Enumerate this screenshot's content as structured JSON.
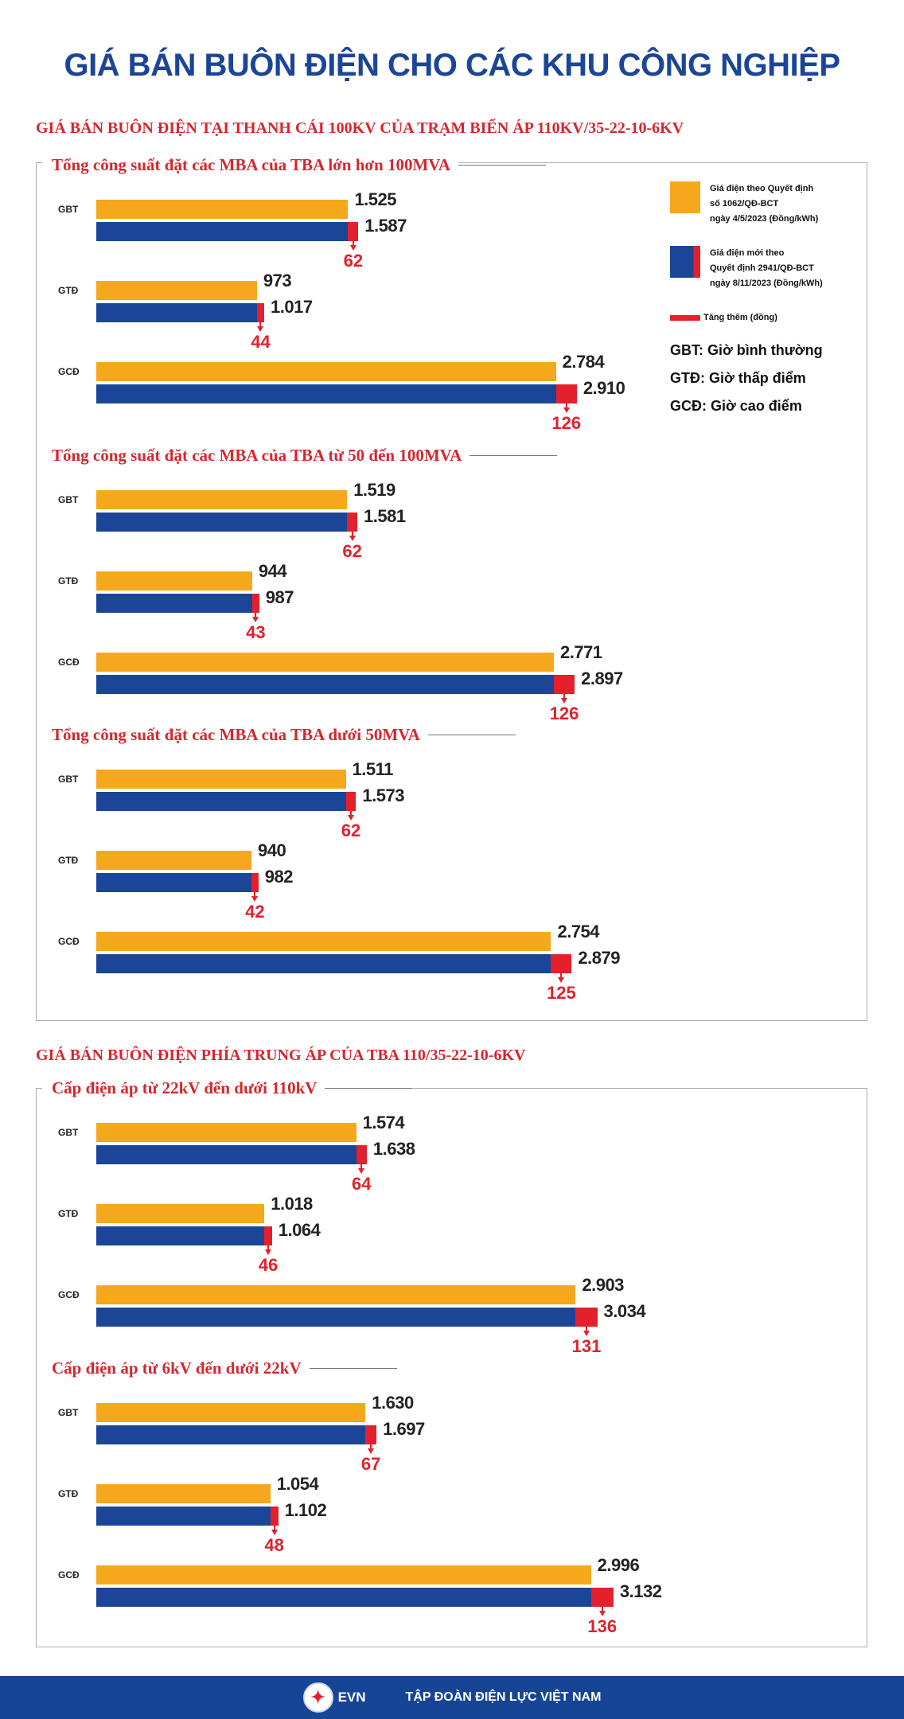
{
  "title": "GIÁ BÁN BUÔN ĐIỆN CHO CÁC KHU CÔNG NGHIỆP",
  "legend": {
    "old_price": "Giá điện theo Quyết định\nsố 1062/QĐ-BCT\nngày 4/5/2023 (Đồng/kWh)",
    "new_price": "Giá điện mới theo\nQuyết định 2941/QĐ-BCT\nngày 8/11/2023 (Đồng/kWh)",
    "increase": "Tăng thêm (đồng)",
    "abbr": [
      "GBT: Giờ bình thường",
      "GTĐ: Giờ thấp điểm",
      "GCĐ: Giờ cao điểm"
    ],
    "colors": {
      "old": "#F5A81C",
      "new": "#1B4597",
      "increase": "#E3202B"
    }
  },
  "footer": {
    "logo": "EVN",
    "org": "TẬP ĐOÀN ĐIỆN LỰC VIỆT NAM"
  },
  "chart_data": {
    "type": "bar",
    "unit": "Đồng/kWh",
    "series_names": [
      "Giá điện theo Quyết định số 1062/QĐ-BCT",
      "Giá điện mới theo Quyết định 2941/QĐ-BCT",
      "Tăng thêm (đồng)"
    ],
    "sections": [
      {
        "title": "GIÁ BÁN BUÔN ĐIỆN TẠI THANH CÁI 100KV CỦA TRẠM BIẾN ÁP 110KV/35-22-10-6KV",
        "groups": [
          {
            "title": "Tổng công suất đặt các MBA của TBA lớn hơn 100MVA",
            "rows": [
              {
                "label": "GBT",
                "old": "1.525",
                "new": "1.587",
                "inc": "62"
              },
              {
                "label": "GTĐ",
                "old": "973",
                "new": "1.017",
                "inc": "44"
              },
              {
                "label": "GCĐ",
                "old": "2.784",
                "new": "2.910",
                "inc": "126"
              }
            ]
          },
          {
            "title": "Tổng công suất đặt các MBA của TBA từ 50 đến 100MVA",
            "rows": [
              {
                "label": "GBT",
                "old": "1.519",
                "new": "1.581",
                "inc": "62"
              },
              {
                "label": "GTĐ",
                "old": "944",
                "new": "987",
                "inc": "43"
              },
              {
                "label": "GCĐ",
                "old": "2.771",
                "new": "2.897",
                "inc": "126"
              }
            ]
          },
          {
            "title": "Tổng công suất đặt các MBA của TBA dưới 50MVA",
            "rows": [
              {
                "label": "GBT",
                "old": "1.511",
                "new": "1.573",
                "inc": "62"
              },
              {
                "label": "GTĐ",
                "old": "940",
                "new": "982",
                "inc": "42"
              },
              {
                "label": "GCĐ",
                "old": "2.754",
                "new": "2.879",
                "inc": "125"
              }
            ]
          }
        ]
      },
      {
        "title": "GIÁ BÁN BUÔN ĐIỆN PHÍA TRUNG ÁP CỦA TBA 110/35-22-10-6KV",
        "groups": [
          {
            "title": "Cấp điện áp từ 22kV đến dưới 110kV",
            "rows": [
              {
                "label": "GBT",
                "old": "1.574",
                "new": "1.638",
                "inc": "64"
              },
              {
                "label": "GTĐ",
                "old": "1.018",
                "new": "1.064",
                "inc": "46"
              },
              {
                "label": "GCĐ",
                "old": "2.903",
                "new": "3.034",
                "inc": "131"
              }
            ]
          },
          {
            "title": "Cấp điện áp từ 6kV đến dưới 22kV",
            "rows": [
              {
                "label": "GBT",
                "old": "1.630",
                "new": "1.697",
                "inc": "67"
              },
              {
                "label": "GTĐ",
                "old": "1.054",
                "new": "1.102",
                "inc": "48"
              },
              {
                "label": "GCĐ",
                "old": "2.996",
                "new": "3.132",
                "inc": "136"
              }
            ]
          }
        ]
      }
    ]
  }
}
